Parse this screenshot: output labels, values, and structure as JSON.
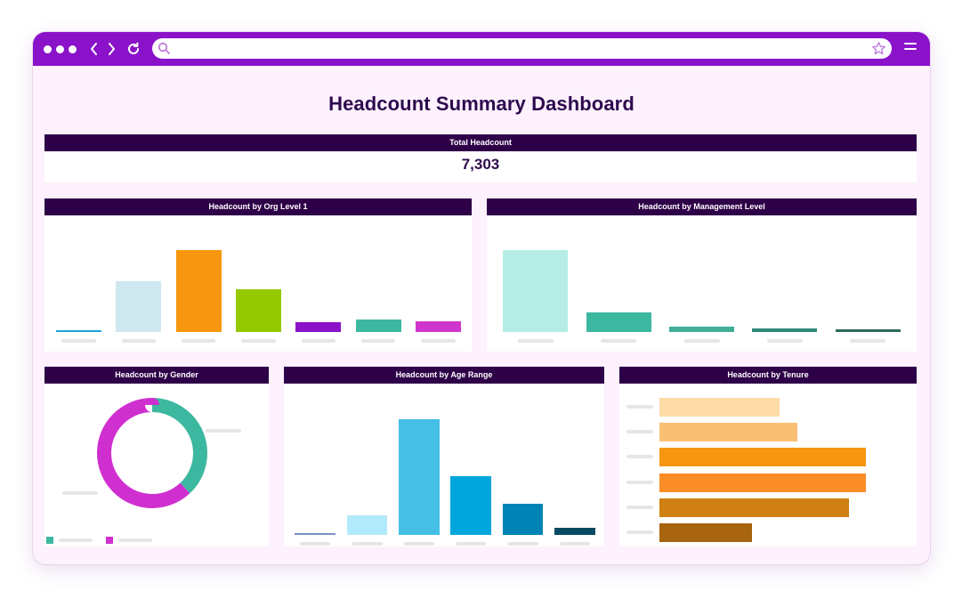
{
  "browser": {
    "search_placeholder": ""
  },
  "dashboard": {
    "title": "Headcount Summary Dashboard",
    "total": {
      "label": "Total Headcount",
      "value": "7,303"
    },
    "org_level_title": "Headcount by Org Level 1",
    "mgmt_level_title": "Headcount by Management Level",
    "gender_title": "Headcount by Gender",
    "age_title": "Headcount by Age Range",
    "tenure_title": "Headcount by Tenure"
  },
  "chart_data": [
    {
      "type": "bar",
      "title": "Headcount by Org Level 1",
      "categories": [
        "",
        "",
        "",
        "",
        "",
        "",
        ""
      ],
      "values": [
        2,
        57,
        92,
        48,
        11,
        14,
        12
      ],
      "ylim": [
        0,
        100
      ],
      "colors": [
        "#1fa3d6",
        "#cfe7ef",
        "#f7960f",
        "#94c900",
        "#8a12c9",
        "#3db8a0",
        "#cf35cc"
      ],
      "grid": false
    },
    {
      "type": "bar",
      "title": "Headcount by Management Level",
      "categories": [
        "",
        "",
        "",
        "",
        ""
      ],
      "values": [
        92,
        22,
        6,
        4,
        3
      ],
      "ylim": [
        0,
        100
      ],
      "colors": [
        "#b5ede6",
        "#3db8a0",
        "#3fae97",
        "#2d8a78",
        "#2a6a5c"
      ],
      "grid": false
    },
    {
      "type": "pie",
      "title": "Headcount by Gender",
      "categories": [
        "",
        ""
      ],
      "values": [
        38,
        62
      ],
      "colors": [
        "#3db8a0",
        "#d02fd0"
      ],
      "legend": "bottom-left"
    },
    {
      "type": "bar",
      "title": "Headcount by Age Range",
      "categories": [
        "",
        "",
        "",
        "",
        "",
        ""
      ],
      "values": [
        1,
        17,
        100,
        51,
        27,
        6
      ],
      "ylim": [
        0,
        100
      ],
      "colors": [
        "#7a8fbf",
        "#b3eafb",
        "#45bfe6",
        "#00a6dc",
        "#0083b5",
        "#044a62"
      ],
      "grid": false
    },
    {
      "type": "bar",
      "orientation": "horizontal",
      "title": "Headcount by Tenure",
      "categories": [
        "",
        "",
        "",
        "",
        "",
        ""
      ],
      "values": [
        58,
        67,
        100,
        100,
        92,
        45
      ],
      "xlim": [
        0,
        100
      ],
      "colors": [
        "#fddba6",
        "#fbbf73",
        "#f7960f",
        "#fb8d26",
        "#d07f12",
        "#a8640e"
      ],
      "grid": false
    }
  ]
}
